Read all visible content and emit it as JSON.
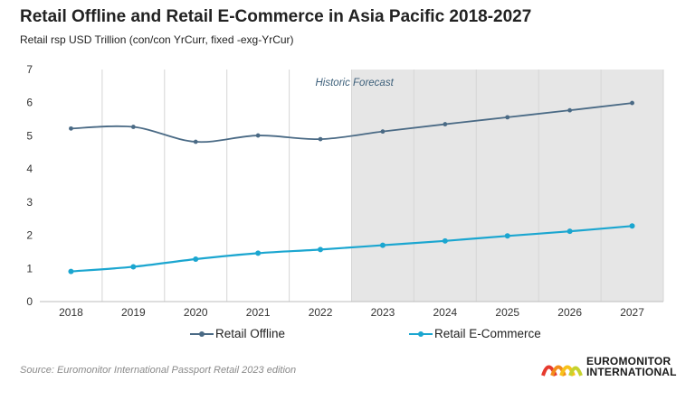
{
  "title": "Retail Offline and Retail E-Commerce in Asia Pacific 2018-2027",
  "subtitle": "Retail rsp USD Trillion (con/con YrCurr, fixed -exg-YrCur)",
  "annotation": "Historic Forecast",
  "source": "Source: Euromonitor International Passport Retail 2023 edition",
  "logo": {
    "line1": "EUROMONITOR",
    "line2": "INTERNATIONAL"
  },
  "colors": {
    "offline": "#4a6a85",
    "ecommerce": "#1ba6d0",
    "forecast_shade": "#e6e6e6",
    "grid": "#d6d6d6"
  },
  "chart_data": {
    "type": "line",
    "categories": [
      "2018",
      "2019",
      "2020",
      "2021",
      "2022",
      "2023",
      "2024",
      "2025",
      "2026",
      "2027"
    ],
    "series": [
      {
        "name": "Retail Offline",
        "values": [
          5.22,
          5.27,
          4.82,
          5.01,
          4.9,
          5.13,
          5.35,
          5.56,
          5.77,
          5.99
        ]
      },
      {
        "name": "Retail E-Commerce",
        "values": [
          0.91,
          1.05,
          1.28,
          1.46,
          1.57,
          1.7,
          1.83,
          1.98,
          2.12,
          2.28
        ]
      }
    ],
    "ylim": [
      0,
      7
    ],
    "yticks": [
      "0",
      "1",
      "2",
      "3",
      "4",
      "5",
      "6",
      "7"
    ],
    "forecast_start": "2023",
    "grid": "vertical",
    "legend": "bottom"
  }
}
